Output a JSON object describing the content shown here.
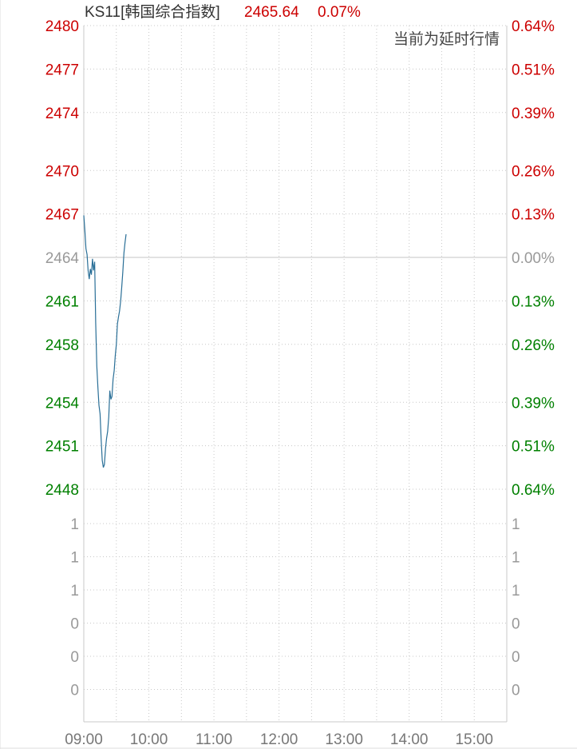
{
  "header": {
    "name": "KS11[韩国综合指数]",
    "price": "2465.64",
    "change_pct": "0.07%"
  },
  "notice": "当前为延时行情",
  "colors": {
    "up": "#cc0000",
    "down": "#008000",
    "neutral": "#999999",
    "line": "#2a6f97",
    "grid": "#c8c8c8"
  },
  "chart_data": {
    "type": "line",
    "title": "",
    "price_axis": {
      "ylim": [
        2448,
        2480
      ],
      "left_ticks": [
        {
          "value": 2480,
          "label": "2480",
          "color": "up"
        },
        {
          "value": 2477,
          "label": "2477",
          "color": "up"
        },
        {
          "value": 2474,
          "label": "2474",
          "color": "up"
        },
        {
          "value": 2470,
          "label": "2470",
          "color": "up"
        },
        {
          "value": 2467,
          "label": "2467",
          "color": "up"
        },
        {
          "value": 2464,
          "label": "2464",
          "color": "neutral"
        },
        {
          "value": 2461,
          "label": "2461",
          "color": "down"
        },
        {
          "value": 2458,
          "label": "2458",
          "color": "down"
        },
        {
          "value": 2454,
          "label": "2454",
          "color": "down"
        },
        {
          "value": 2451,
          "label": "2451",
          "color": "down"
        },
        {
          "value": 2448,
          "label": "2448",
          "color": "down"
        }
      ],
      "right_ticks": [
        {
          "label": "0.64%",
          "color": "up"
        },
        {
          "label": "0.51%",
          "color": "up"
        },
        {
          "label": "0.39%",
          "color": "up"
        },
        {
          "label": "0.26%",
          "color": "up"
        },
        {
          "label": "0.13%",
          "color": "up"
        },
        {
          "label": "0.00%",
          "color": "neutral"
        },
        {
          "label": "0.13%",
          "color": "down"
        },
        {
          "label": "0.26%",
          "color": "down"
        },
        {
          "label": "0.39%",
          "color": "down"
        },
        {
          "label": "0.51%",
          "color": "down"
        },
        {
          "label": "0.64%",
          "color": "down"
        }
      ],
      "baseline": 2464
    },
    "volume_axis": {
      "left_ticks": [
        "1",
        "1",
        "1",
        "0",
        "0",
        "0"
      ],
      "right_ticks": [
        "1",
        "1",
        "1",
        "0",
        "0",
        "0"
      ]
    },
    "x_axis": {
      "start": "09:00",
      "end": "15:30",
      "ticks": [
        "09:00",
        "10:00",
        "11:00",
        "12:00",
        "13:00",
        "14:00",
        "15:00"
      ]
    },
    "series": [
      {
        "points": [
          [
            "09:00",
            2466.9
          ],
          [
            "09:01",
            2465.8
          ],
          [
            "09:02",
            2464.6
          ],
          [
            "09:03",
            2464.2
          ],
          [
            "09:04",
            2463.1
          ],
          [
            "09:05",
            2462.5
          ],
          [
            "09:06",
            2463.2
          ],
          [
            "09:07",
            2462.8
          ],
          [
            "09:08",
            2463.9
          ],
          [
            "09:09",
            2463.1
          ],
          [
            "09:10",
            2463.7
          ],
          [
            "09:11",
            2459.5
          ],
          [
            "09:12",
            2456.5
          ],
          [
            "09:13",
            2455.0
          ],
          [
            "09:14",
            2453.8
          ],
          [
            "09:15",
            2453.2
          ],
          [
            "09:16",
            2451.5
          ],
          [
            "09:17",
            2450.0
          ],
          [
            "09:18",
            2449.5
          ],
          [
            "09:19",
            2449.7
          ],
          [
            "09:20",
            2450.8
          ],
          [
            "09:21",
            2451.5
          ],
          [
            "09:22",
            2452.0
          ],
          [
            "09:23",
            2453.0
          ],
          [
            "09:24",
            2454.8
          ],
          [
            "09:25",
            2454.2
          ],
          [
            "09:26",
            2454.4
          ],
          [
            "09:27",
            2455.6
          ],
          [
            "09:28",
            2456.2
          ],
          [
            "09:29",
            2457.2
          ],
          [
            "09:30",
            2458.0
          ],
          [
            "09:31",
            2459.4
          ],
          [
            "09:32",
            2459.9
          ],
          [
            "09:33",
            2460.3
          ],
          [
            "09:34",
            2461.0
          ],
          [
            "09:35",
            2462.0
          ],
          [
            "09:36",
            2463.0
          ],
          [
            "09:37",
            2464.3
          ],
          [
            "09:38",
            2465.0
          ],
          [
            "09:39",
            2465.6
          ]
        ]
      }
    ]
  }
}
